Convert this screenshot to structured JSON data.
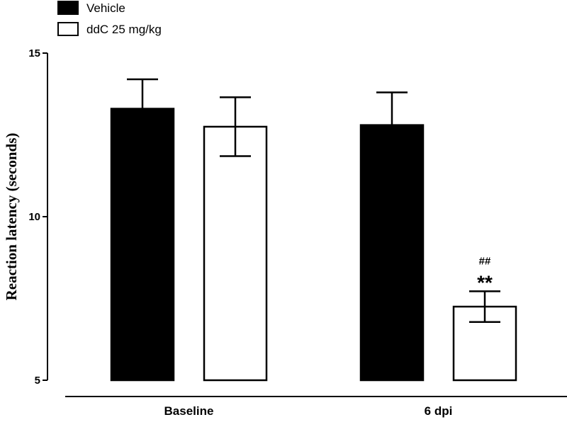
{
  "chart_data": {
    "type": "bar",
    "categories": [
      "Baseline",
      "6 dpi"
    ],
    "series": [
      {
        "name": "Vehicle",
        "values": [
          13.3,
          12.8
        ],
        "errors": [
          0.9,
          1.0
        ],
        "fill": "#000000"
      },
      {
        "name": "ddC 25 mg/kg",
        "values": [
          12.75,
          7.25
        ],
        "errors": [
          0.9,
          0.47
        ],
        "fill": "#ffffff"
      }
    ],
    "ylabel": "Reaction latency (seconds)",
    "xlabel": "",
    "ylim": [
      5,
      15
    ],
    "yticks": [
      5,
      10,
      15
    ],
    "grid": false,
    "legend_position": "top-left",
    "annotations": [
      {
        "category": "6 dpi",
        "series": "ddC 25 mg/kg",
        "lines": [
          "##",
          "**"
        ]
      }
    ]
  }
}
